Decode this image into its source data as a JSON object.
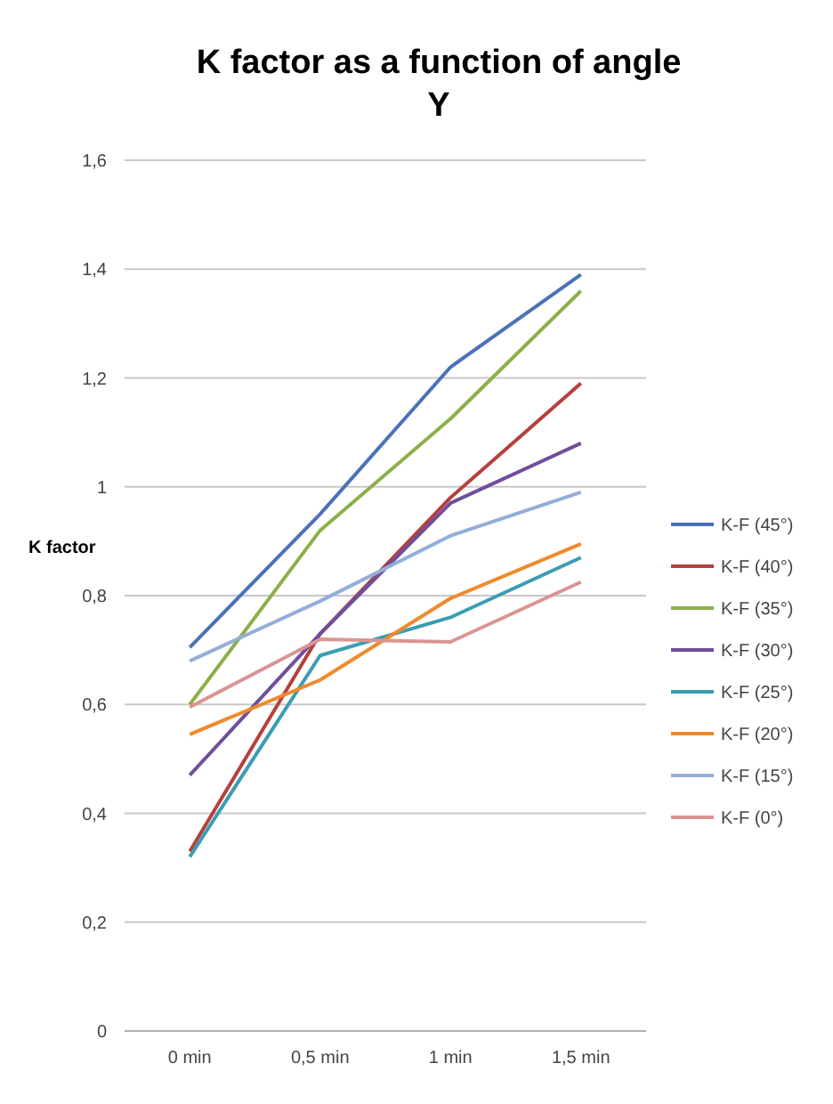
{
  "chart_data": {
    "type": "line",
    "title": "K factor as a function of angle\nY",
    "ylabel": "K factor",
    "categories": [
      "0 min",
      "0,5 min",
      "1 min",
      "1,5 min"
    ],
    "ylim": [
      0,
      1.6
    ],
    "yticks": [
      {
        "value": 0,
        "label": "0"
      },
      {
        "value": 0.2,
        "label": "0,2"
      },
      {
        "value": 0.4,
        "label": "0,4"
      },
      {
        "value": 0.6,
        "label": "0,6"
      },
      {
        "value": 0.8,
        "label": "0,8"
      },
      {
        "value": 1,
        "label": "1"
      },
      {
        "value": 1.2,
        "label": "1,2"
      },
      {
        "value": 1.4,
        "label": "1,4"
      },
      {
        "value": 1.6,
        "label": "1,6"
      }
    ],
    "grid": "y",
    "legend": "right",
    "marker": "none",
    "series": [
      {
        "name": "K-F (45°)",
        "color": "#4a72b8",
        "values": [
          0.705,
          0.95,
          1.22,
          1.39
        ]
      },
      {
        "name": "K-F (40°)",
        "color": "#b5403d",
        "values": [
          0.33,
          0.73,
          0.98,
          1.19
        ]
      },
      {
        "name": "K-F (35°)",
        "color": "#8cb04a",
        "values": [
          0.6,
          0.92,
          1.125,
          1.36
        ]
      },
      {
        "name": "K-F (30°)",
        "color": "#6f4f9a",
        "values": [
          0.47,
          0.73,
          0.97,
          1.08
        ]
      },
      {
        "name": "K-F (25°)",
        "color": "#3a9db3",
        "values": [
          0.32,
          0.69,
          0.76,
          0.87
        ]
      },
      {
        "name": "K-F (20°)",
        "color": "#ef8a2c",
        "values": [
          0.545,
          0.645,
          0.795,
          0.895
        ]
      },
      {
        "name": "K-F (15°)",
        "color": "#93aed9",
        "values": [
          0.68,
          0.79,
          0.91,
          0.99
        ]
      },
      {
        "name": "K-F (0°)",
        "color": "#d99593",
        "values": [
          0.595,
          0.72,
          0.715,
          0.825
        ]
      }
    ]
  }
}
